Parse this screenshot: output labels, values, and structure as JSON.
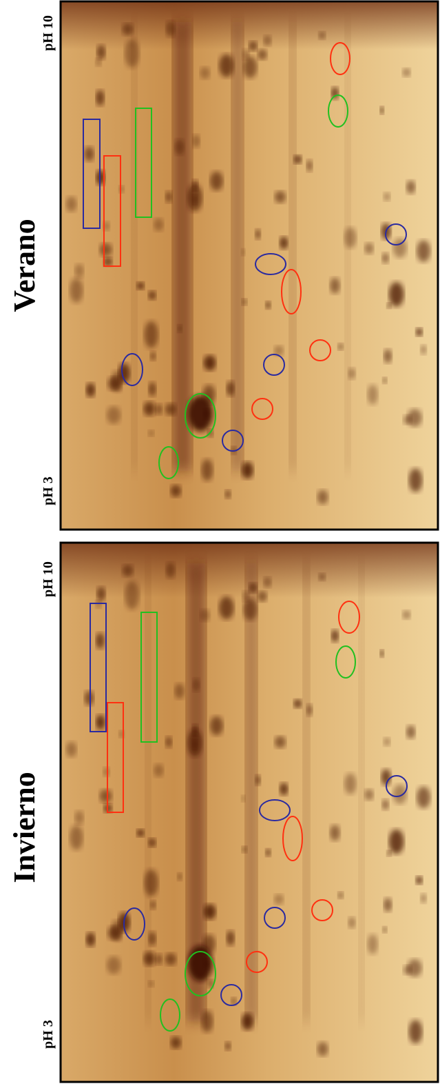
{
  "panels": [
    {
      "ph_top": "pH 10",
      "label": "Verano",
      "ph_bottom": "pH 3"
    },
    {
      "ph_top": "pH 10",
      "label": "Invierno",
      "ph_bottom": "pH 3"
    }
  ]
}
